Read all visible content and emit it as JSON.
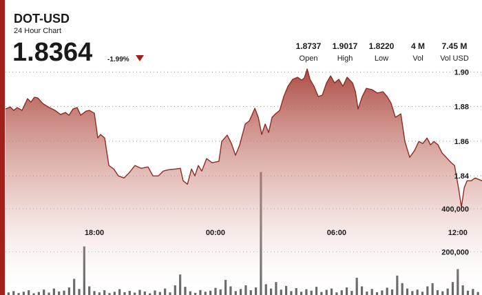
{
  "chart_data": {
    "type": "line",
    "title": "DOT-USD",
    "subtitle": "24 Hour Chart",
    "price": "1.8364",
    "change": "-1.99%",
    "stats": [
      {
        "value": "1.8737",
        "label": "Open"
      },
      {
        "value": "1.9017",
        "label": "High"
      },
      {
        "value": "1.8220",
        "label": "Low"
      },
      {
        "value": "4 M",
        "label": "Vol"
      },
      {
        "value": "7.45 M",
        "label": "Vol USD"
      }
    ],
    "xlim": [
      13.6,
      37.2
    ],
    "xticks": [
      {
        "value": 18,
        "label": "18:00"
      },
      {
        "value": 24,
        "label": "00:00"
      },
      {
        "value": 30,
        "label": "06:00"
      },
      {
        "value": 36,
        "label": "12:00"
      }
    ],
    "ylim": [
      1.7713,
      1.9057
    ],
    "yticks": [
      {
        "value": 1.9,
        "label": "1.90"
      },
      1.88,
      1.86,
      1.84
    ],
    "grid": true,
    "series": [
      {
        "name": "DOT-USD",
        "color": "#8e2b22",
        "x": [
          13.6,
          13.84,
          14.01,
          14.18,
          14.42,
          14.69,
          14.86,
          15.03,
          15.2,
          15.44,
          15.71,
          16.06,
          16.33,
          16.57,
          16.74,
          16.94,
          17.15,
          17.32,
          17.59,
          17.76,
          18.0,
          18.17,
          18.31,
          18.51,
          18.72,
          18.96,
          19.19,
          19.47,
          19.74,
          20.01,
          20.32,
          20.66,
          20.9,
          21.17,
          21.41,
          21.68,
          22.03,
          22.26,
          22.4,
          22.61,
          22.81,
          22.98,
          23.15,
          23.32,
          23.56,
          23.83,
          24.17,
          24.31,
          24.58,
          24.79,
          24.99,
          25.2,
          25.47,
          25.68,
          25.95,
          26.12,
          26.29,
          26.46,
          26.63,
          26.8,
          26.97,
          27.18,
          27.38,
          27.59,
          27.82,
          28.06,
          28.27,
          28.4,
          28.54,
          28.68,
          28.88,
          29.09,
          29.29,
          29.5,
          29.7,
          29.9,
          30.11,
          30.31,
          30.52,
          30.79,
          30.93,
          31.06,
          31.27,
          31.47,
          31.75,
          32.02,
          32.29,
          32.5,
          32.7,
          32.91,
          33.18,
          33.38,
          33.62,
          33.86,
          34.07,
          34.27,
          34.48,
          34.65,
          34.82,
          35.02,
          35.23,
          35.43,
          35.64,
          35.84,
          36.05,
          36.18,
          36.32,
          36.46,
          36.66,
          36.86,
          37.2
        ],
        "values": [
          1.8786,
          1.8798,
          1.8778,
          1.8794,
          1.8778,
          1.8846,
          1.8826,
          1.8854,
          1.885,
          1.8818,
          1.8798,
          1.8778,
          1.8754,
          1.8766,
          1.875,
          1.8786,
          1.8794,
          1.875,
          1.8774,
          1.8778,
          1.8762,
          1.8619,
          1.8639,
          1.8619,
          1.846,
          1.844,
          1.84,
          1.8388,
          1.842,
          1.846,
          1.8444,
          1.8452,
          1.84,
          1.84,
          1.8428,
          1.8436,
          1.844,
          1.8444,
          1.8372,
          1.8352,
          1.844,
          1.84,
          1.846,
          1.8428,
          1.85,
          1.8476,
          1.8484,
          1.8599,
          1.8635,
          1.8587,
          1.8519,
          1.8579,
          1.8699,
          1.8718,
          1.879,
          1.8738,
          1.8639,
          1.8699,
          1.8651,
          1.8738,
          1.8758,
          1.8778,
          1.8858,
          1.8917,
          1.8957,
          1.8969,
          1.8953,
          1.8965,
          1.9017,
          1.8957,
          1.8917,
          1.8858,
          1.8866,
          1.8937,
          1.8977,
          1.8937,
          1.8957,
          1.8917,
          1.8969,
          1.8937,
          1.8886,
          1.8786,
          1.8858,
          1.8905,
          1.8898,
          1.8878,
          1.8886,
          1.8858,
          1.8818,
          1.8738,
          1.8758,
          1.8599,
          1.8507,
          1.8547,
          1.8599,
          1.8587,
          1.8619,
          1.8579,
          1.8599,
          1.8579,
          1.8531,
          1.8507,
          1.848,
          1.846,
          1.832,
          1.822,
          1.8332,
          1.8372,
          1.8372,
          1.8388,
          1.8372
        ]
      }
    ],
    "volume": {
      "color": "#555555",
      "ylim": [
        0,
        1080000
      ],
      "yticks": [
        {
          "value": 400000,
          "label": "400,000"
        },
        {
          "value": 200000,
          "label": "200,000"
        }
      ],
      "x": [
        13.75,
        14.0,
        14.25,
        14.5,
        14.75,
        15.0,
        15.25,
        15.5,
        15.75,
        16.0,
        16.25,
        16.5,
        16.75,
        17.0,
        17.25,
        17.5,
        17.75,
        18.0,
        18.25,
        18.5,
        18.75,
        19.0,
        19.25,
        19.5,
        19.75,
        20.0,
        20.25,
        20.5,
        20.75,
        21.0,
        21.25,
        21.5,
        21.75,
        22.0,
        22.25,
        22.5,
        22.75,
        23.0,
        23.25,
        23.5,
        23.75,
        24.0,
        24.25,
        24.5,
        24.75,
        25.0,
        25.25,
        25.5,
        25.75,
        26.0,
        26.25,
        26.5,
        26.75,
        27.0,
        27.25,
        27.5,
        27.75,
        28.0,
        28.25,
        28.5,
        28.75,
        29.0,
        29.25,
        29.5,
        29.75,
        30.0,
        30.25,
        30.5,
        30.75,
        31.0,
        31.25,
        31.5,
        31.75,
        32.0,
        32.25,
        32.5,
        32.75,
        33.0,
        33.25,
        33.5,
        33.75,
        34.0,
        34.25,
        34.5,
        34.75,
        35.0,
        35.25,
        35.5,
        35.75,
        36.0,
        36.25,
        36.5,
        36.75,
        37.0
      ],
      "values": [
        12000,
        18000,
        9000,
        15000,
        22000,
        8000,
        14000,
        25000,
        11000,
        30000,
        16000,
        20000,
        35000,
        75000,
        28000,
        225000,
        40000,
        18000,
        12000,
        22000,
        9000,
        15000,
        27000,
        13000,
        19000,
        11000,
        24000,
        16000,
        8000,
        21000,
        14000,
        30000,
        12000,
        45000,
        95000,
        38000,
        17000,
        10000,
        23000,
        15000,
        20000,
        33000,
        26000,
        70000,
        40000,
        18000,
        28000,
        45000,
        22000,
        35000,
        570000,
        50000,
        30000,
        60000,
        25000,
        42000,
        18000,
        32000,
        15000,
        27000,
        20000,
        38000,
        14000,
        24000,
        30000,
        12000,
        22000,
        35000,
        19000,
        80000,
        40000,
        16000,
        28000,
        13000,
        21000,
        34000,
        26000,
        90000,
        55000,
        30000,
        18000,
        25000,
        15000,
        40000,
        55000,
        22000,
        17000,
        30000,
        60000,
        120000,
        45000,
        20000,
        28000,
        14000
      ]
    }
  }
}
